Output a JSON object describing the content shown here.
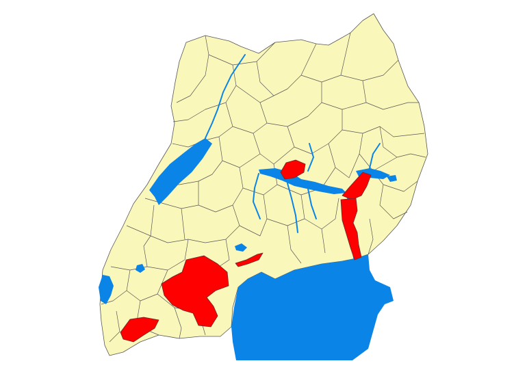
{
  "map": {
    "country": "Uganda",
    "colors": {
      "land": "#FAF7BB",
      "water": "#0A84E6",
      "highlight": "#FF0000",
      "boundary": "#555555",
      "background": "#FFFFFF"
    },
    "highlighted_districts_count": 6
  }
}
